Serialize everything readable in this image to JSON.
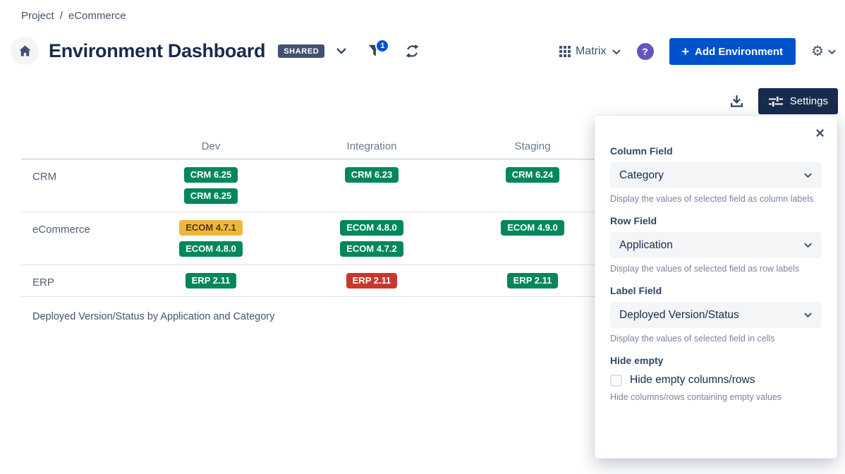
{
  "breadcrumb": {
    "items": [
      "Project",
      "eCommerce"
    ],
    "separator": "/"
  },
  "header": {
    "title": "Environment Dashboard",
    "shared_badge": "SHARED",
    "filter_count": "1",
    "view_label": "Matrix",
    "help_icon": "?",
    "plus_icon": "+",
    "add_environment_label": "Add Environment",
    "gear_icon": "⚙"
  },
  "toolbar": {
    "settings_label": "Settings"
  },
  "matrix": {
    "columns": [
      "Dev",
      "Integration",
      "Staging"
    ],
    "rows": [
      {
        "label": "CRM",
        "cells": [
          [
            {
              "text": "CRM 6.25",
              "status": "green"
            },
            {
              "text": "CRM 6.25",
              "status": "green"
            }
          ],
          [
            {
              "text": "CRM 6.23",
              "status": "green"
            }
          ],
          [
            {
              "text": "CRM 6.24",
              "status": "green"
            }
          ]
        ]
      },
      {
        "label": "eCommerce",
        "cells": [
          [
            {
              "text": "ECOM 4.7.1",
              "status": "yellow"
            },
            {
              "text": "ECOM 4.8.0",
              "status": "green"
            }
          ],
          [
            {
              "text": "ECOM 4.8.0",
              "status": "green"
            },
            {
              "text": "ECOM 4.7.2",
              "status": "green"
            }
          ],
          [
            {
              "text": "ECOM 4.9.0",
              "status": "green"
            }
          ]
        ]
      },
      {
        "label": "ERP",
        "cells": [
          [
            {
              "text": "ERP 2.11",
              "status": "green"
            }
          ],
          [
            {
              "text": "ERP 2.11",
              "status": "red"
            }
          ],
          [
            {
              "text": "ERP 2.11",
              "status": "green"
            }
          ]
        ]
      }
    ],
    "caption": "Deployed Version/Status by Application and Category"
  },
  "settings_panel": {
    "close_icon": "×",
    "sections": [
      {
        "label": "Column Field",
        "value": "Category",
        "help": "Display the values of selected field as column labels"
      },
      {
        "label": "Row Field",
        "value": "Application",
        "help": "Display the values of selected field as row labels"
      },
      {
        "label": "Label Field",
        "value": "Deployed Version/Status",
        "help": "Display the values of selected field in cells"
      }
    ],
    "hide_empty": {
      "label": "Hide empty",
      "checkbox_label": "Hide empty columns/rows",
      "help": "Hide columns/rows containing empty values",
      "checked": false
    }
  },
  "colors": {
    "badge_green": "#00875A",
    "badge_yellow": "#EFB63D",
    "badge_red": "#C9372C",
    "accent_blue": "#0052CC",
    "help_purple": "#6554C0",
    "dark_navy": "#172B4D",
    "shared_badge_bg": "#42526E"
  }
}
